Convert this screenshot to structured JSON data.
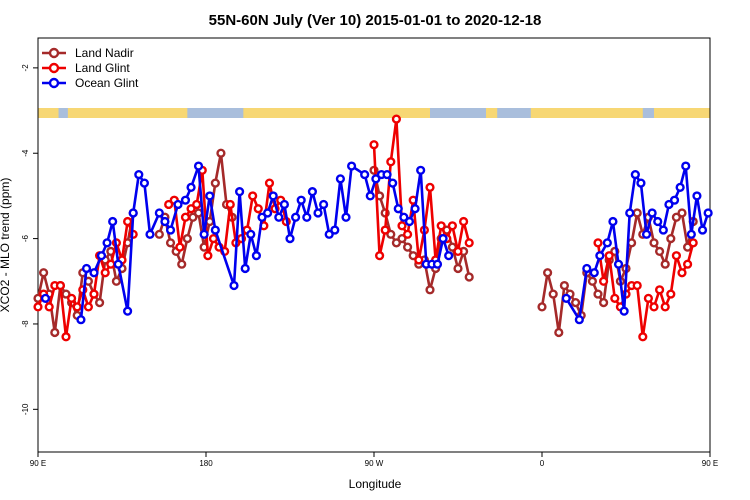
{
  "chart_data": {
    "type": "line",
    "title": "55N-60N July (Ver 10)   2015-01-01 to 2020-12-18",
    "xlabel": "Longitude",
    "ylabel": "XCO2 - MLO trend (ppm)",
    "xlim": [
      90,
      450
    ],
    "ylim": [
      -11,
      -1.3
    ],
    "x_ticks": [
      {
        "value": 90,
        "label": "90 E"
      },
      {
        "value": 180,
        "label": "180"
      },
      {
        "value": 270,
        "label": "90 W"
      },
      {
        "value": 360,
        "label": "0"
      },
      {
        "value": 450,
        "label": "90 E"
      },
      {
        "value": 540,
        "label": "180"
      }
    ],
    "y_ticks": [
      {
        "value": -2,
        "label": "-2"
      },
      {
        "value": -4,
        "label": "-4"
      },
      {
        "value": -6,
        "label": "-6"
      },
      {
        "value": -8,
        "label": "-8"
      },
      {
        "value": -10,
        "label": "-10"
      }
    ],
    "grid": false,
    "legend_position": "top-left",
    "land_band_colors": {
      "land": "#f7d774",
      "ocean": "#a9bedc"
    },
    "series": [
      {
        "name": "Land Nadir",
        "color": "#a52a2a",
        "x": [
          90,
          93,
          96,
          99,
          102,
          105,
          108,
          111,
          114,
          117,
          120,
          123,
          126,
          129,
          132,
          135,
          138,
          141,
          155,
          158,
          161,
          164,
          167,
          170,
          173,
          176,
          179,
          182,
          185,
          188,
          191,
          194,
          270,
          273,
          276,
          279,
          282,
          285,
          288,
          291,
          294,
          297,
          300,
          303,
          306,
          309,
          312,
          315,
          318,
          321,
          360,
          363,
          366,
          369,
          372,
          375,
          378,
          381,
          384,
          387,
          390,
          393,
          396,
          399,
          402,
          405,
          408,
          411,
          414,
          417,
          420,
          423,
          426,
          429,
          432,
          435,
          438,
          441
        ],
        "y": [
          -7.4,
          -6.8,
          -7.3,
          -8.2,
          -7.1,
          -7.3,
          -7.5,
          -7.8,
          -6.8,
          -7.0,
          -7.3,
          -7.5,
          -6.5,
          -6.3,
          -7.0,
          -6.7,
          -6.1,
          -5.4,
          -5.9,
          -5.5,
          -6.1,
          -6.3,
          -6.6,
          -6.0,
          -5.5,
          -5.4,
          -6.2,
          -5.6,
          -4.7,
          -4.0,
          -5.2,
          -5.5,
          -4.4,
          -5.0,
          -5.4,
          -5.9,
          -6.1,
          -6.0,
          -6.2,
          -6.4,
          -6.6,
          -6.5,
          -7.2,
          -6.7,
          -6.0,
          -5.8,
          -6.2,
          -6.7,
          -6.3,
          -6.9,
          -7.6,
          -6.8,
          -7.3,
          -8.2,
          -7.1,
          -7.3,
          -7.5,
          -7.8,
          -6.8,
          -7.0,
          -7.3,
          -7.5,
          -6.5,
          -6.3,
          -7.0,
          -6.7,
          -6.1,
          -5.4,
          -5.9,
          -5.5,
          -6.1,
          -6.3,
          -6.6,
          -6.0,
          -5.5,
          -5.4,
          -6.2,
          -5.6
        ]
      },
      {
        "name": "Land Glint",
        "color": "#ee0000",
        "x": [
          90,
          93,
          96,
          99,
          102,
          105,
          108,
          111,
          114,
          117,
          120,
          123,
          126,
          129,
          132,
          135,
          138,
          141,
          160,
          163,
          166,
          169,
          172,
          175,
          178,
          181,
          184,
          187,
          190,
          193,
          196,
          199,
          202,
          205,
          208,
          211,
          214,
          217,
          220,
          223,
          270,
          273,
          276,
          279,
          282,
          285,
          288,
          291,
          294,
          297,
          300,
          303,
          306,
          309,
          312,
          315,
          318,
          321,
          390,
          393,
          396,
          399,
          402,
          405,
          408,
          411,
          414,
          417,
          420,
          423,
          426,
          429,
          432,
          435,
          438,
          441
        ],
        "y": [
          -7.6,
          -7.3,
          -7.6,
          -7.1,
          -7.1,
          -8.3,
          -7.4,
          -7.6,
          -7.2,
          -7.6,
          -7.3,
          -6.4,
          -6.8,
          -6.6,
          -6.1,
          -6.5,
          -5.6,
          -5.9,
          -5.2,
          -5.1,
          -6.2,
          -5.5,
          -5.3,
          -5.2,
          -4.4,
          -6.4,
          -6.0,
          -6.2,
          -6.3,
          -5.2,
          -6.1,
          -6.0,
          -5.8,
          -5.0,
          -5.3,
          -5.7,
          -4.7,
          -5.3,
          -5.1,
          -5.6,
          -3.8,
          -6.4,
          -5.8,
          -4.2,
          -3.2,
          -5.7,
          -5.9,
          -5.1,
          -6.5,
          -5.8,
          -4.8,
          -6.5,
          -5.7,
          -6.0,
          -5.7,
          -6.3,
          -5.6,
          -6.1,
          -6.1,
          -7.0,
          -6.4,
          -7.4,
          -7.6,
          -7.3,
          -7.1,
          -7.1,
          -8.3,
          -7.4,
          -7.6,
          -7.2,
          -7.6,
          -7.3,
          -6.4,
          -6.8,
          -6.6,
          -6.1
        ]
      },
      {
        "name": "Ocean Glint",
        "color": "#0000ee",
        "x": [
          94,
          113,
          116,
          120,
          124,
          127,
          130,
          133,
          138,
          141,
          144,
          147,
          150,
          155,
          158,
          161,
          165,
          169,
          172,
          176,
          179,
          182,
          185,
          195,
          198,
          201,
          204,
          207,
          210,
          213,
          216,
          219,
          222,
          225,
          228,
          231,
          234,
          237,
          240,
          243,
          246,
          249,
          252,
          255,
          258,
          265,
          268,
          271,
          274,
          277,
          280,
          283,
          286,
          289,
          292,
          295,
          298,
          301,
          304,
          307,
          310,
          373,
          380,
          384,
          388,
          391,
          395,
          398,
          401,
          404,
          407,
          410,
          413,
          416,
          419,
          422,
          425,
          428,
          431,
          434,
          437,
          440,
          443,
          446,
          449
        ],
        "y": [
          -7.4,
          -7.9,
          -6.7,
          -6.8,
          -6.4,
          -6.1,
          -5.6,
          -6.6,
          -7.7,
          -5.4,
          -4.5,
          -4.7,
          -5.9,
          -5.4,
          -5.6,
          -5.8,
          -5.2,
          -5.1,
          -4.8,
          -4.3,
          -5.9,
          -5.0,
          -5.8,
          -7.1,
          -4.9,
          -6.7,
          -5.9,
          -6.4,
          -5.5,
          -5.4,
          -5.0,
          -5.5,
          -5.2,
          -6.0,
          -5.5,
          -5.1,
          -5.5,
          -4.9,
          -5.4,
          -5.2,
          -5.9,
          -5.8,
          -4.6,
          -5.5,
          -4.3,
          -4.5,
          -5.0,
          -4.6,
          -4.5,
          -4.5,
          -4.7,
          -5.3,
          -5.5,
          -5.6,
          -5.3,
          -4.4,
          -6.6,
          -6.6,
          -6.6,
          -6.0,
          -6.4,
          -7.4,
          -7.9,
          -6.7,
          -6.8,
          -6.4,
          -6.1,
          -5.6,
          -6.6,
          -7.7,
          -5.4,
          -4.5,
          -4.7,
          -5.9,
          -5.4,
          -5.6,
          -5.8,
          -5.2,
          -5.1,
          -4.8,
          -4.3,
          -5.9,
          -5.0,
          -5.8,
          -5.4
        ]
      }
    ]
  }
}
